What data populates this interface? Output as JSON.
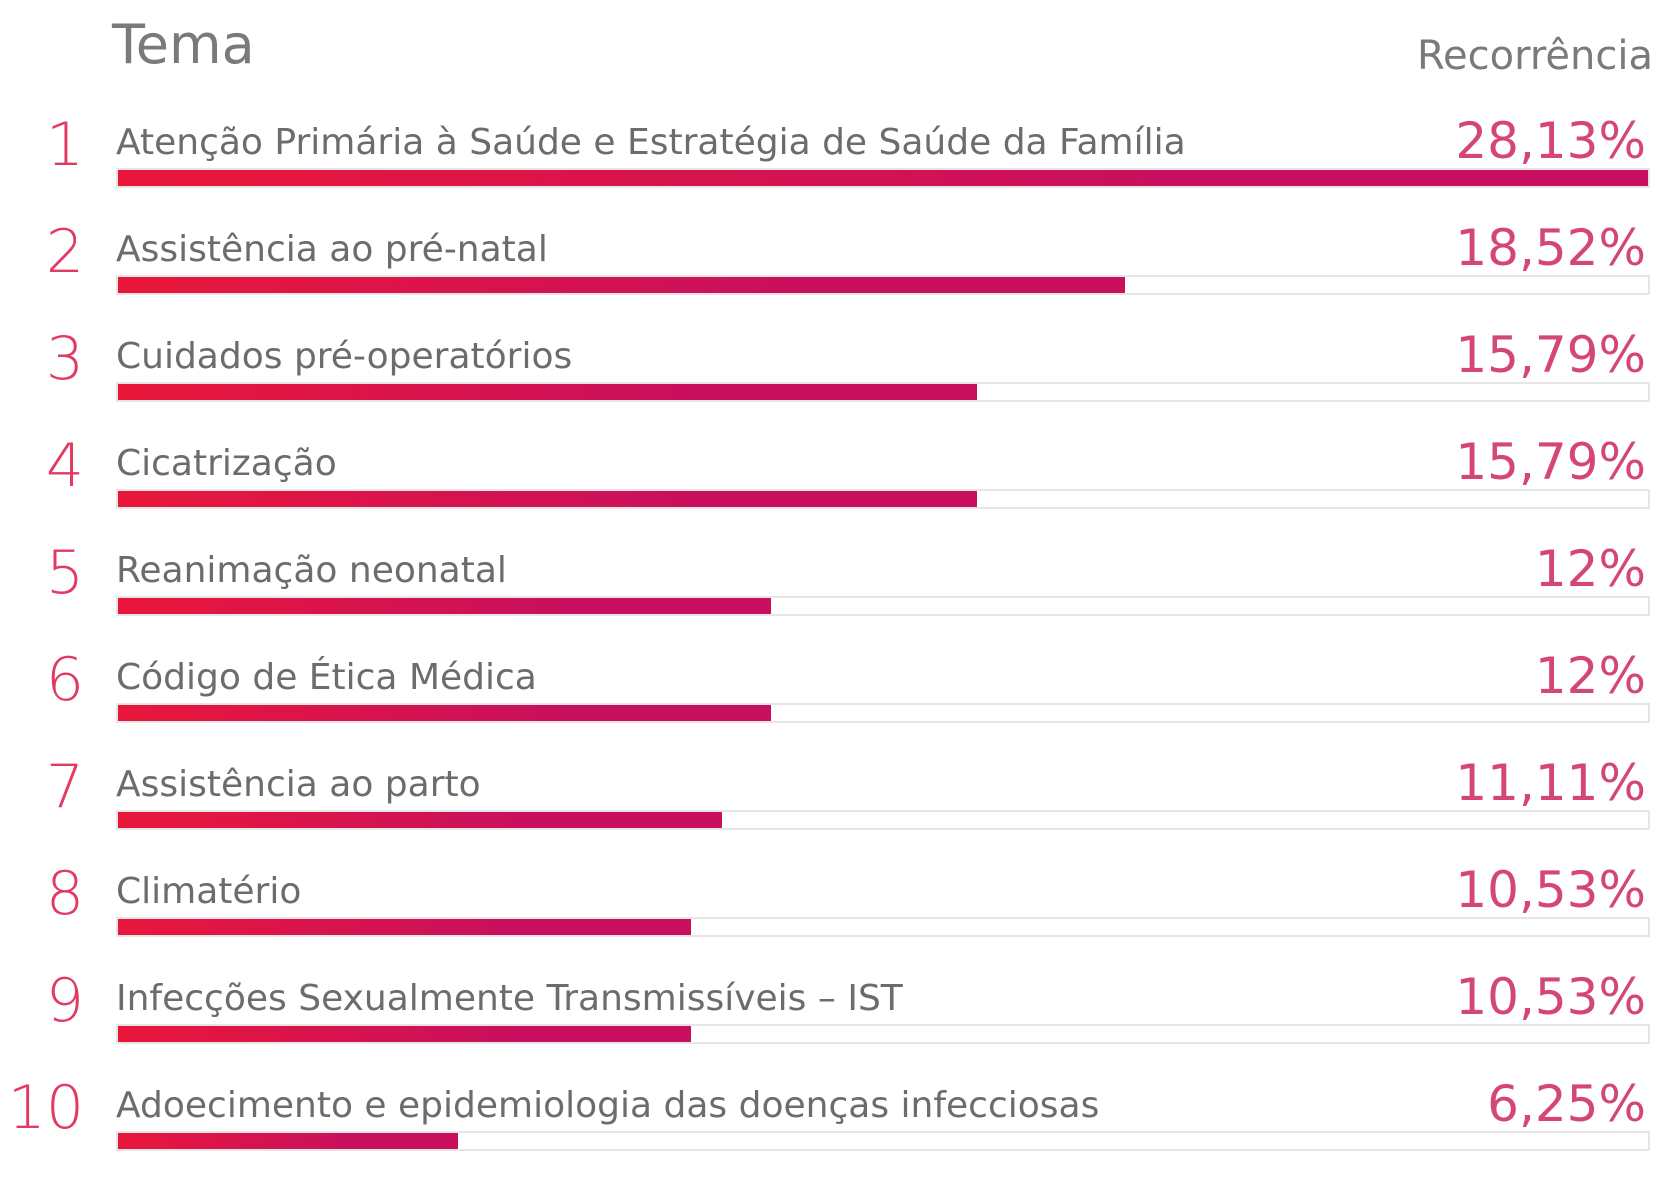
{
  "header": {
    "tema": "Tema",
    "recorrencia": "Recorrência"
  },
  "colors": {
    "bar_start": "#e8173a",
    "bar_end": "#c8105f",
    "rank": "#e23a63",
    "value": "#d4467a",
    "label": "#6c6c6c",
    "header": "#7a7a7a",
    "track_border": "#e6e6e6"
  },
  "chart_data": {
    "type": "bar",
    "orientation": "horizontal",
    "xlim": [
      0,
      28.13
    ],
    "categories": [
      "Atenção Primária à Saúde e Estratégia de Saúde da Família",
      "Assistência ao pré-natal",
      "Cuidados pré-operatórios",
      "Cicatrização",
      "Reanimação neonatal",
      "Código de Ética Médica",
      "Assistência ao parto",
      "Climatério",
      "Infecções Sexualmente Transmissíveis – IST",
      "Adoecimento e epidemiologia das doenças infecciosas"
    ],
    "values": [
      28.13,
      18.52,
      15.79,
      15.79,
      12,
      12,
      11.11,
      10.53,
      10.53,
      6.25
    ],
    "rows": [
      {
        "rank": "1",
        "label": "Atenção Primária à Saúde e Estratégia de Saúde da Família",
        "value_label": "28,13%"
      },
      {
        "rank": "2",
        "label": "Assistência ao pré-natal",
        "value_label": "18,52%"
      },
      {
        "rank": "3",
        "label": "Cuidados pré-operatórios",
        "value_label": "15,79%"
      },
      {
        "rank": "4",
        "label": "Cicatrização",
        "value_label": "15,79%"
      },
      {
        "rank": "5",
        "label": "Reanimação neonatal",
        "value_label": "12%"
      },
      {
        "rank": "6",
        "label": "Código de Ética Médica",
        "value_label": "12%"
      },
      {
        "rank": "7",
        "label": "Assistência ao parto",
        "value_label": "11,11%"
      },
      {
        "rank": "8",
        "label": "Climatério",
        "value_label": "10,53%"
      },
      {
        "rank": "9",
        "label": "Infecções Sexualmente Transmissíveis – IST",
        "value_label": "10,53%"
      },
      {
        "rank": "10",
        "label": "Adoecimento e epidemiologia das doenças infecciosas",
        "value_label": "6,25%"
      }
    ]
  }
}
